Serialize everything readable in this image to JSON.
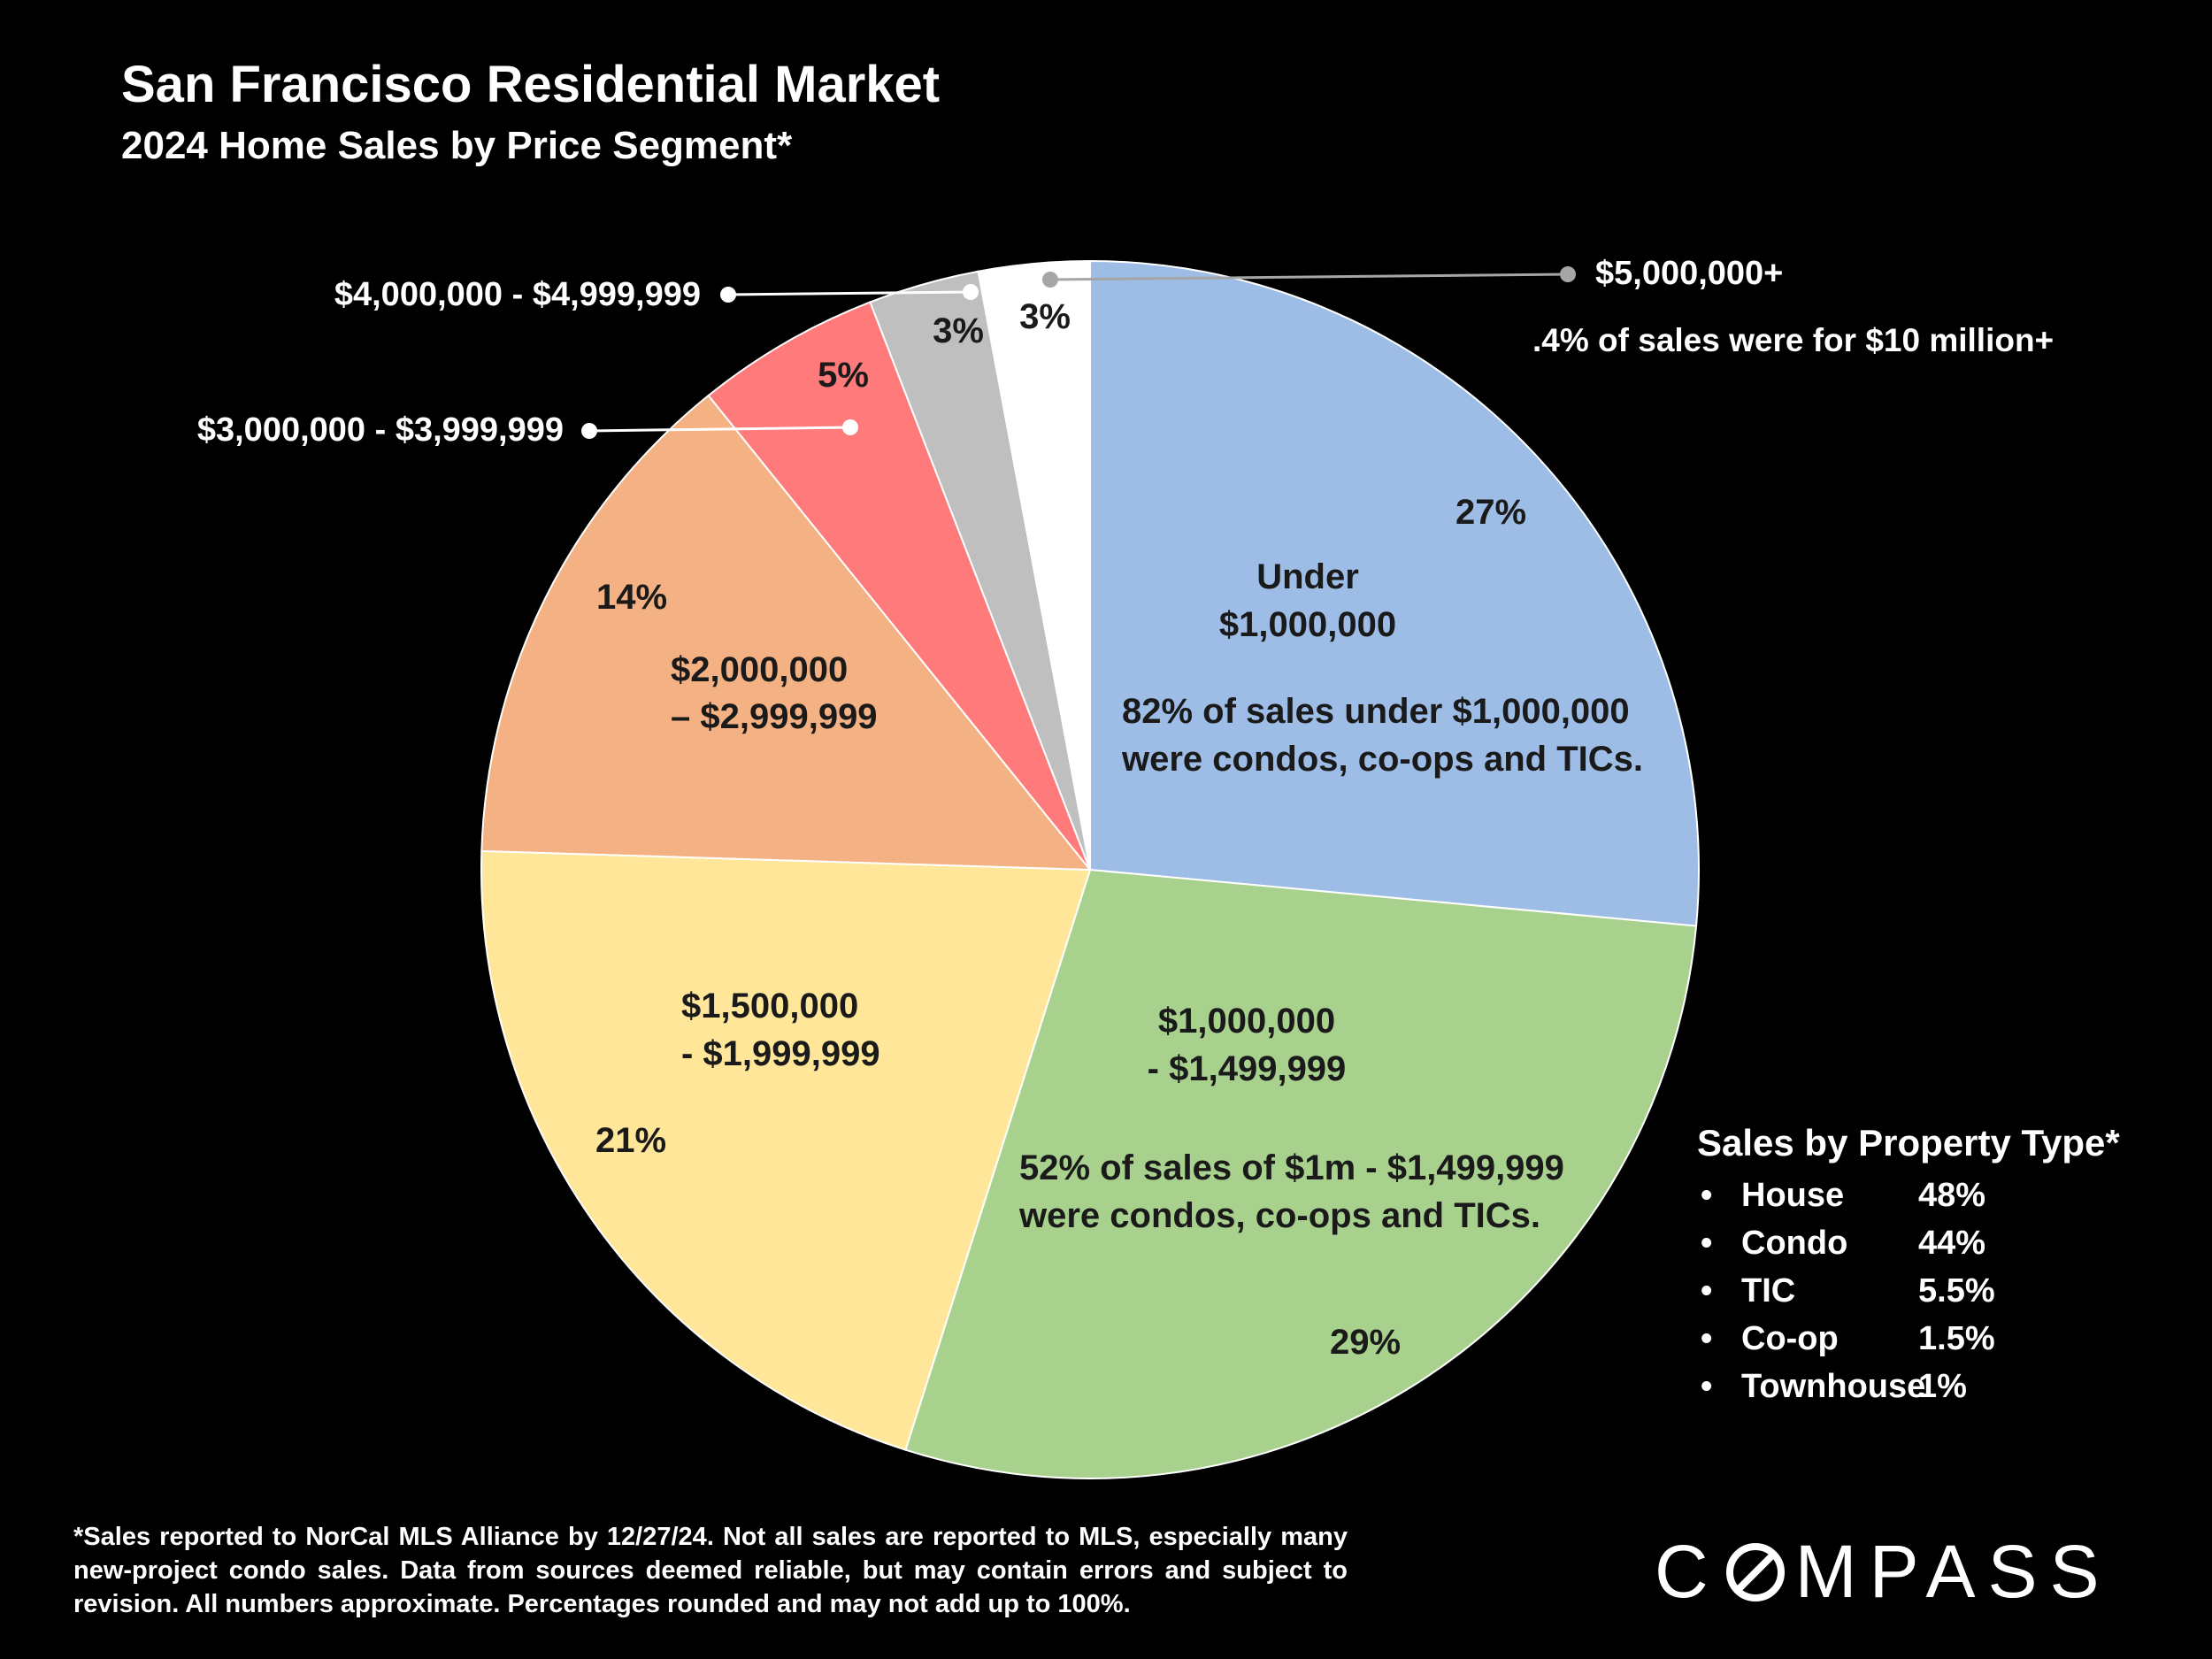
{
  "header": {
    "title": "San Francisco Residential Market",
    "subtitle": "2024 Home Sales by Price Segment*"
  },
  "chart_data": {
    "type": "pie",
    "title": "San Francisco Residential Market",
    "subtitle": "2024 Home Sales by Price Segment*",
    "start_angle_deg": 0,
    "direction": "clockwise",
    "slices": [
      {
        "label": "Under $1,000,000",
        "label_lines": [
          "Under",
          "$1,000,000"
        ],
        "value": 27,
        "value_label": "27%",
        "color": "#9dbde6",
        "note": [
          "82% of sales under $1,000,000",
          "were condos, co-ops and TICs."
        ]
      },
      {
        "label": "$1,000,000 - $1,499,999",
        "label_lines": [
          "$1,000,000",
          "- $1,499,999"
        ],
        "value": 29,
        "value_label": "29%",
        "color": "#a9d18e",
        "note": [
          "52% of sales of $1m - $1,499,999",
          "were condos, co-ops and TICs."
        ]
      },
      {
        "label": "$1,500,000 - $1,999,999",
        "label_lines": [
          "$1,500,000",
          "- $1,999,999"
        ],
        "value": 21,
        "value_label": "21%",
        "color": "#ffe699"
      },
      {
        "label": "$2,000,000 – $2,999,999",
        "label_lines": [
          "$2,000,000",
          "– $2,999,999"
        ],
        "value": 14,
        "value_label": "14%",
        "color": "#f4b183"
      },
      {
        "label": "$3,000,000 - $3,999,999",
        "value": 5,
        "value_label": "5%",
        "color": "#ff7a7a"
      },
      {
        "label": "$4,000,000 - $4,999,999",
        "value": 3,
        "value_label": "3%",
        "color": "#bfbfbf"
      },
      {
        "label": "$5,000,000+",
        "value": 3,
        "value_label": "3%",
        "color": "#ffffff",
        "note": [
          ".4% of sales were for $10 million+"
        ]
      }
    ]
  },
  "legend": {
    "title": "Sales by Property Type*",
    "bullet": "•",
    "items": [
      {
        "name": "House",
        "value": "48%"
      },
      {
        "name": "Condo",
        "value": "44%"
      },
      {
        "name": "TIC",
        "value": "5.5%"
      },
      {
        "name": "Co-op",
        "value": "1.5%"
      },
      {
        "name": "Townhouse",
        "value": "1%"
      }
    ]
  },
  "footnote": "*Sales reported to NorCal MLS Alliance by 12/27/24. Not all sales are reported to MLS, especially many new-project condo sales. Data from sources deemed reliable, but may contain errors and subject to revision. All numbers approximate. Percentages rounded and may not add up to 100%.",
  "logo": {
    "text": "COMPASS",
    "pre": "C",
    "post": "MPASS"
  }
}
